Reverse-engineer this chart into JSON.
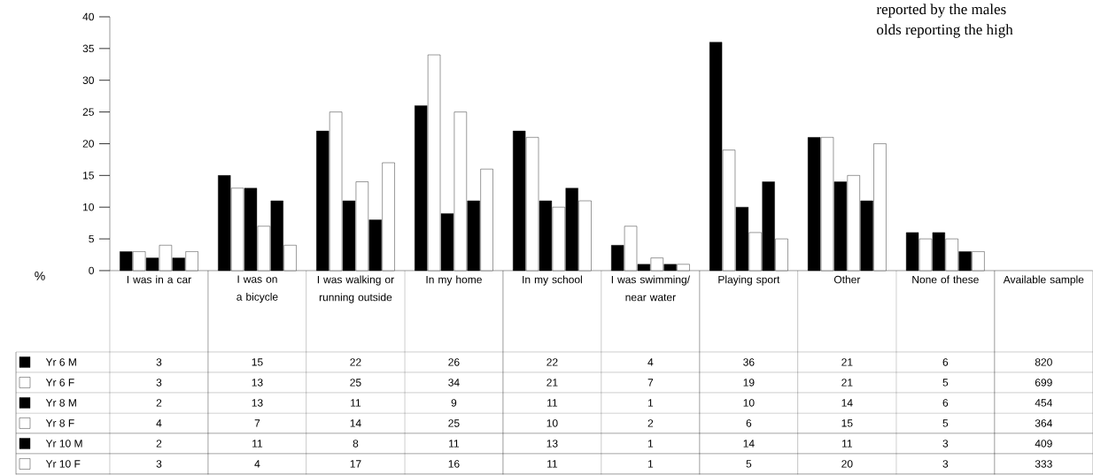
{
  "chart_data": {
    "type": "bar",
    "ylabel": "%",
    "categories": [
      "I was in a car",
      "I was on a bicycle",
      "I was walking or running outside",
      "In my home",
      "In my school",
      "I was swimming/ near water",
      "Playing sport",
      "Other",
      "None of these",
      "Available sample"
    ],
    "series": [
      {
        "name": "Yr 6 M",
        "color": "#000000",
        "values": [
          3,
          15,
          22,
          26,
          22,
          4,
          36,
          21,
          6,
          null
        ],
        "value_labels": [
          "3",
          "15",
          "22",
          "26",
          "22",
          "4",
          "36",
          "21",
          "6",
          "820"
        ]
      },
      {
        "name": "Yr 6 F",
        "color": "#ffffff",
        "values": [
          3,
          13,
          25,
          34,
          21,
          7,
          19,
          21,
          5,
          null
        ],
        "value_labels": [
          "3",
          "13",
          "25",
          "34",
          "21",
          "7",
          "19",
          "21",
          "5",
          "699"
        ]
      },
      {
        "name": "Yr 8 M",
        "color": "#000000",
        "values": [
          2,
          13,
          11,
          9,
          11,
          1,
          10,
          14,
          6,
          null
        ],
        "value_labels": [
          "2",
          "13",
          "11",
          "9",
          "11",
          "1",
          "10",
          "14",
          "6",
          "454"
        ]
      },
      {
        "name": "Yr 8 F",
        "color": "#ffffff",
        "values": [
          4,
          7,
          14,
          25,
          10,
          2,
          6,
          15,
          5,
          null
        ],
        "value_labels": [
          "4",
          "7",
          "14",
          "25",
          "10",
          "2",
          "6",
          "15",
          "5",
          "364"
        ]
      },
      {
        "name": "Yr 10 M",
        "color": "#000000",
        "values": [
          2,
          11,
          8,
          11,
          13,
          1,
          14,
          11,
          3,
          null
        ],
        "value_labels": [
          "2",
          "11",
          "8",
          "11",
          "13",
          "1",
          "14",
          "11",
          "3",
          "409"
        ]
      },
      {
        "name": "Yr 10 F",
        "color": "#ffffff",
        "values": [
          3,
          4,
          17,
          16,
          11,
          1,
          5,
          20,
          3,
          null
        ],
        "value_labels": [
          "3",
          "4",
          "17",
          "16",
          "11",
          "1",
          "5",
          "20",
          "3",
          "333"
        ]
      }
    ],
    "ylim": [
      0,
      40
    ],
    "yticks": [
      0,
      5,
      10,
      15,
      20,
      25,
      30,
      35,
      40
    ],
    "grid": false,
    "legend": "bottom left",
    "annotations": [
      "reported by the males",
      "olds reporting the high"
    ]
  }
}
